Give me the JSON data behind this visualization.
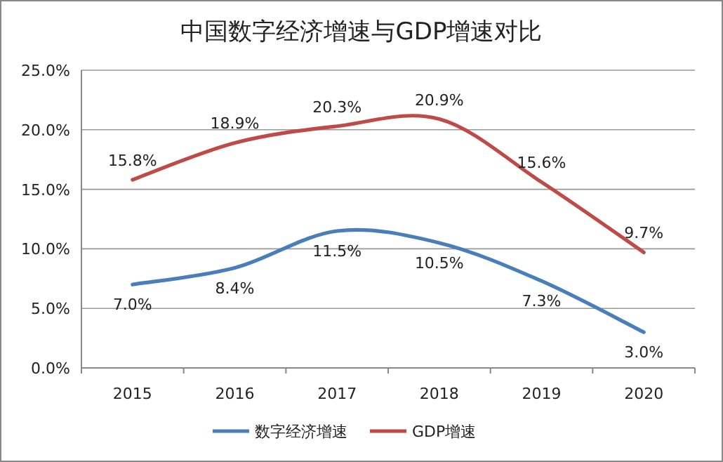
{
  "chart_data": {
    "type": "line",
    "title": "中国数字经济增速与GDP增速对比",
    "categories": [
      "2015",
      "2016",
      "2017",
      "2018",
      "2019",
      "2020"
    ],
    "series": [
      {
        "name": "数字经济增速",
        "color": "#4a7ebb",
        "values": [
          7.0,
          8.4,
          11.5,
          10.5,
          7.3,
          3.0
        ],
        "value_labels": [
          "7.0%",
          "8.4%",
          "11.5%",
          "10.5%",
          "7.3%",
          "3.0%"
        ]
      },
      {
        "name": "GDP增速",
        "color": "#be4b48",
        "values": [
          15.8,
          18.9,
          20.3,
          20.9,
          15.6,
          9.7
        ],
        "value_labels": [
          "15.8%",
          "18.9%",
          "20.3%",
          "20.9%",
          "15.6%",
          "9.7%"
        ]
      }
    ],
    "ylim": [
      0,
      25
    ],
    "yticks": [
      {
        "value": 0,
        "label": "0.0%"
      },
      {
        "value": 5,
        "label": "5.0%"
      },
      {
        "value": 10,
        "label": "10.0%"
      },
      {
        "value": 15,
        "label": "15.0%"
      },
      {
        "value": 20,
        "label": "20.0%"
      },
      {
        "value": 25,
        "label": "25.0%"
      }
    ],
    "grid": "y",
    "legend": "bottom",
    "marker": "none",
    "line_style": "solid"
  }
}
